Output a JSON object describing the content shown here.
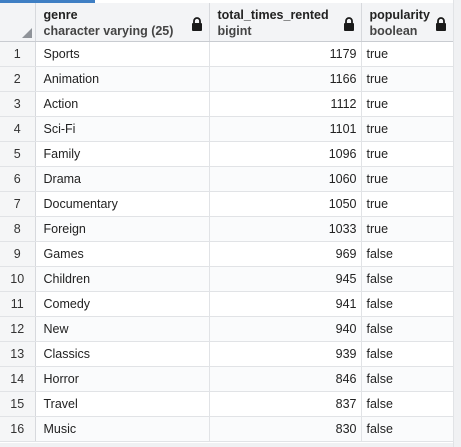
{
  "columns": [
    {
      "name": "genre",
      "type": "character varying (25)",
      "icon": "lock-icon"
    },
    {
      "name": "total_times_rented",
      "type": "bigint",
      "icon": "lock-icon"
    },
    {
      "name": "popularity",
      "type": "boolean",
      "icon": "lock-icon"
    }
  ],
  "rows": [
    {
      "index": "1",
      "genre": "Sports",
      "total_times_rented": "1179",
      "popularity": "true"
    },
    {
      "index": "2",
      "genre": "Animation",
      "total_times_rented": "1166",
      "popularity": "true"
    },
    {
      "index": "3",
      "genre": "Action",
      "total_times_rented": "1112",
      "popularity": "true"
    },
    {
      "index": "4",
      "genre": "Sci-Fi",
      "total_times_rented": "1101",
      "popularity": "true"
    },
    {
      "index": "5",
      "genre": "Family",
      "total_times_rented": "1096",
      "popularity": "true"
    },
    {
      "index": "6",
      "genre": "Drama",
      "total_times_rented": "1060",
      "popularity": "true"
    },
    {
      "index": "7",
      "genre": "Documentary",
      "total_times_rented": "1050",
      "popularity": "true"
    },
    {
      "index": "8",
      "genre": "Foreign",
      "total_times_rented": "1033",
      "popularity": "true"
    },
    {
      "index": "9",
      "genre": "Games",
      "total_times_rented": "969",
      "popularity": "false"
    },
    {
      "index": "10",
      "genre": "Children",
      "total_times_rented": "945",
      "popularity": "false"
    },
    {
      "index": "11",
      "genre": "Comedy",
      "total_times_rented": "941",
      "popularity": "false"
    },
    {
      "index": "12",
      "genre": "New",
      "total_times_rented": "940",
      "popularity": "false"
    },
    {
      "index": "13",
      "genre": "Classics",
      "total_times_rented": "939",
      "popularity": "false"
    },
    {
      "index": "14",
      "genre": "Horror",
      "total_times_rented": "846",
      "popularity": "false"
    },
    {
      "index": "15",
      "genre": "Travel",
      "total_times_rented": "837",
      "popularity": "false"
    },
    {
      "index": "16",
      "genre": "Music",
      "total_times_rented": "830",
      "popularity": "false"
    }
  ],
  "colors": {
    "accent": "#3f7fc4",
    "header_bg": "#f3f4f6",
    "grid_line": "#e1e3e6"
  }
}
